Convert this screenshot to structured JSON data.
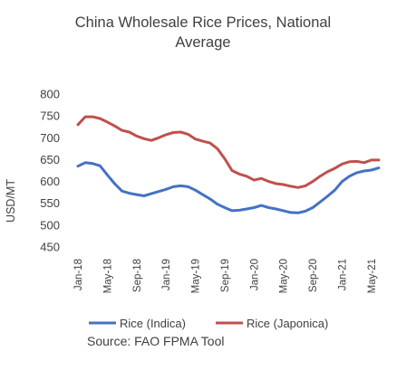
{
  "chart_data": {
    "type": "line",
    "title_lines": [
      "China Wholesale Rice Prices, National",
      "Average"
    ],
    "ylabel": "USD/MT",
    "ylim": [
      450,
      800
    ],
    "yticks": [
      800,
      750,
      700,
      650,
      600,
      550,
      500,
      450
    ],
    "xlabels": [
      "Jan-18",
      "May-18",
      "Sep-18",
      "Jan-19",
      "May-19",
      "Sep-19",
      "Jan-20",
      "May-20",
      "Sep-20",
      "Jan-21",
      "May-21"
    ],
    "x": [
      "Jan-18",
      "Feb-18",
      "Mar-18",
      "Apr-18",
      "May-18",
      "Jun-18",
      "Jul-18",
      "Aug-18",
      "Sep-18",
      "Oct-18",
      "Nov-18",
      "Dec-18",
      "Jan-19",
      "Feb-19",
      "Mar-19",
      "Apr-19",
      "May-19",
      "Jun-19",
      "Jul-19",
      "Aug-19",
      "Sep-19",
      "Oct-19",
      "Nov-19",
      "Dec-19",
      "Jan-20",
      "Feb-20",
      "Mar-20",
      "Apr-20",
      "May-20",
      "Jun-20",
      "Jul-20",
      "Aug-20",
      "Sep-20",
      "Oct-20",
      "Nov-20",
      "Dec-20",
      "Jan-21",
      "Feb-21",
      "Mar-21",
      "Apr-21",
      "May-21",
      "Jun-21"
    ],
    "series": [
      {
        "name": "Rice (Indica)",
        "color": "#4472c4",
        "values": [
          635,
          643,
          641,
          636,
          615,
          595,
          578,
          573,
          570,
          567,
          572,
          577,
          582,
          588,
          590,
          588,
          580,
          570,
          560,
          548,
          540,
          533,
          534,
          537,
          540,
          545,
          540,
          537,
          533,
          529,
          528,
          532,
          540,
          553,
          566,
          580,
          600,
          612,
          620,
          624,
          626,
          631
        ]
      },
      {
        "name": "Rice (Japonica)",
        "color": "#c0504d",
        "values": [
          730,
          748,
          748,
          744,
          736,
          727,
          717,
          713,
          704,
          698,
          694,
          700,
          707,
          712,
          713,
          708,
          697,
          692,
          688,
          675,
          652,
          625,
          617,
          612,
          603,
          607,
          600,
          595,
          593,
          589,
          586,
          590,
          600,
          612,
          622,
          630,
          640,
          645,
          646,
          643,
          649,
          649
        ]
      }
    ],
    "source": "Source: FAO FPMA Tool"
  }
}
